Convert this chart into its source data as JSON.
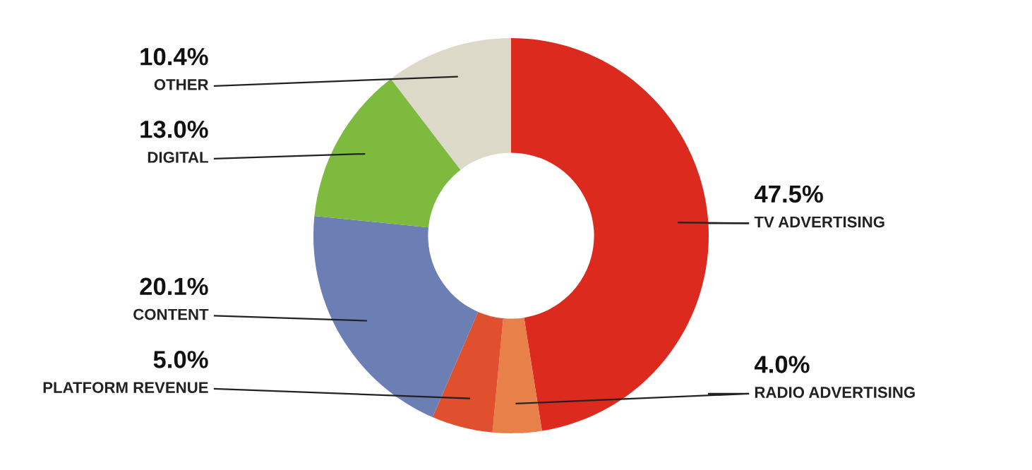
{
  "chart_data": {
    "type": "donut",
    "categories": [
      "TV ADVERTISING",
      "RADIO ADVERTISING",
      "PLATFORM REVENUE",
      "CONTENT",
      "DIGITAL",
      "OTHER"
    ],
    "values": [
      47.5,
      4.0,
      5.0,
      20.1,
      13.0,
      10.4
    ],
    "value_labels": [
      "47.5%",
      "4.0%",
      "5.0%",
      "20.1%",
      "13.0%",
      "10.4%"
    ],
    "colors": [
      "#dc2a1e",
      "#e8804a",
      "#e0502e",
      "#6b7fb5",
      "#7dba3e",
      "#dcd9c8"
    ],
    "legend": false
  }
}
